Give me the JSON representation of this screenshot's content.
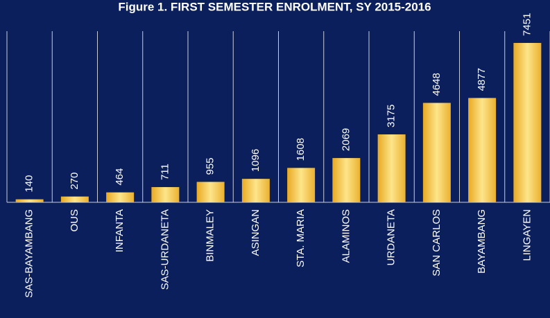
{
  "chart_data": {
    "type": "bar",
    "title": "Figure 1. FIRST SEMESTER ENROLMENT, SY 2015-2016",
    "categories": [
      "SAS-BAYAMBANG",
      "OUS",
      "INFANTA",
      "SAS-URDANETA",
      "BINMALEY",
      "ASINGAN",
      "STA. MARIA",
      "ALAMINOS",
      "URDANETA",
      "SAN CARLOS",
      "BAYAMBANG",
      "LINGAYEN"
    ],
    "values": [
      140,
      270,
      464,
      711,
      955,
      1096,
      1608,
      2069,
      3175,
      4648,
      4877,
      7451
    ],
    "color": "#f7c843",
    "ylim": [
      0,
      8000
    ]
  }
}
